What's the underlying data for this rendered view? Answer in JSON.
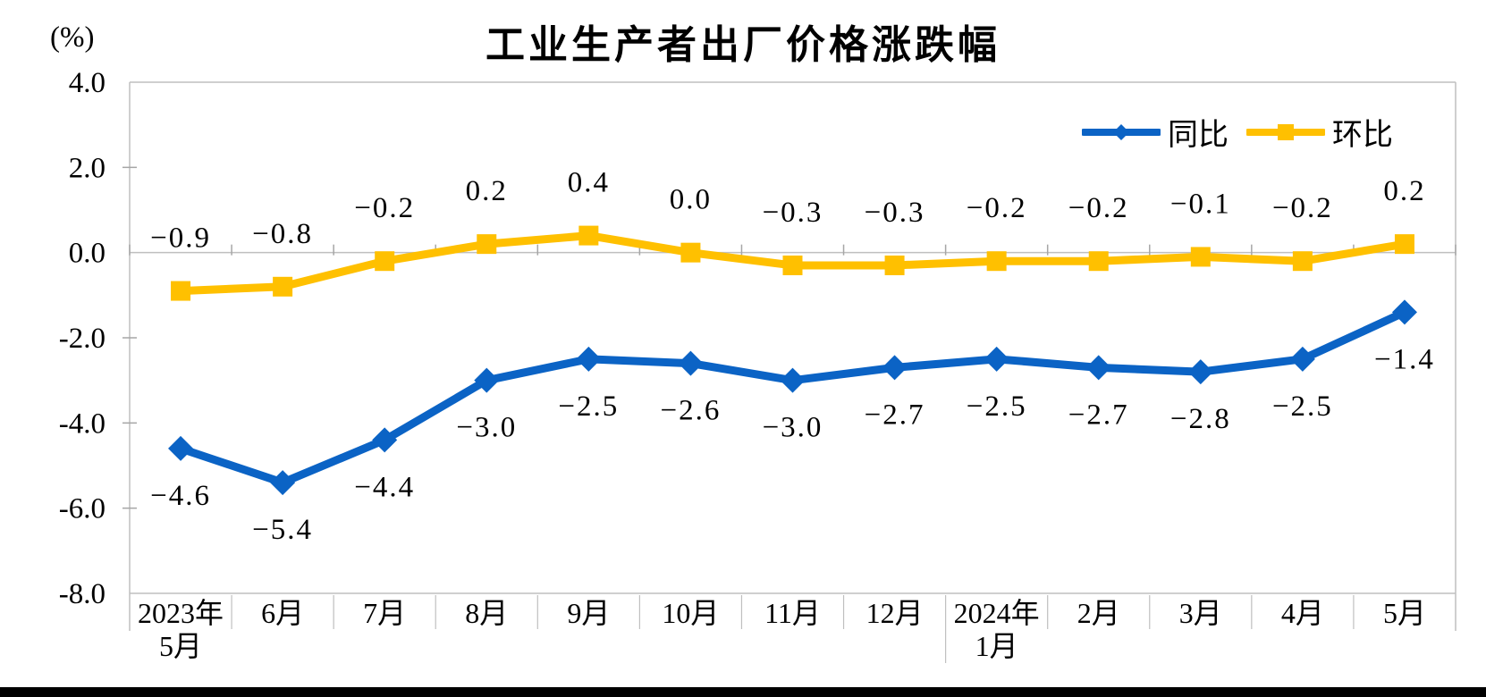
{
  "header": {
    "title": "工业生产者出厂价格涨跌幅",
    "unit_label": "(%)"
  },
  "legend": {
    "position": "top-right",
    "items": [
      {
        "label": "同比",
        "color": "#0B63C5",
        "marker": "diamond"
      },
      {
        "label": "环比",
        "color": "#FFC000",
        "marker": "square"
      }
    ]
  },
  "chart_data": {
    "type": "line",
    "title": "工业生产者出厂价格涨跌幅",
    "ylabel": "(%)",
    "xlabel": "",
    "grid": false,
    "legend_position": "top-right",
    "ylim": [
      -8.0,
      4.0
    ],
    "ytick_step": 2.0,
    "yticks": [
      4.0,
      2.0,
      0.0,
      -2.0,
      -4.0,
      -6.0,
      -8.0
    ],
    "categories": [
      [
        "2023年",
        "5月"
      ],
      [
        "6月"
      ],
      [
        "7月"
      ],
      [
        "8月"
      ],
      [
        "9月"
      ],
      [
        "10月"
      ],
      [
        "11月"
      ],
      [
        "12月"
      ],
      [
        "2024年",
        "1月"
      ],
      [
        "2月"
      ],
      [
        "3月"
      ],
      [
        "4月"
      ],
      [
        "5月"
      ]
    ],
    "series": [
      {
        "name": "同比",
        "color": "#0B63C5",
        "marker": "diamond",
        "label_position": "below",
        "values": [
          -4.6,
          -5.4,
          -4.4,
          -3.0,
          -2.5,
          -2.6,
          -3.0,
          -2.7,
          -2.5,
          -2.7,
          -2.8,
          -2.5,
          -1.4
        ]
      },
      {
        "name": "环比",
        "color": "#FFC000",
        "marker": "square",
        "label_position": "above",
        "values": [
          -0.9,
          -0.8,
          -0.2,
          0.2,
          0.4,
          0.0,
          -0.3,
          -0.3,
          -0.2,
          -0.2,
          -0.1,
          -0.2,
          0.2
        ]
      }
    ]
  },
  "colors": {
    "axis_border": "#BFBFBF",
    "tick": "#A6A6A6",
    "label_text": "#000000",
    "footer_bar": "#000000"
  }
}
